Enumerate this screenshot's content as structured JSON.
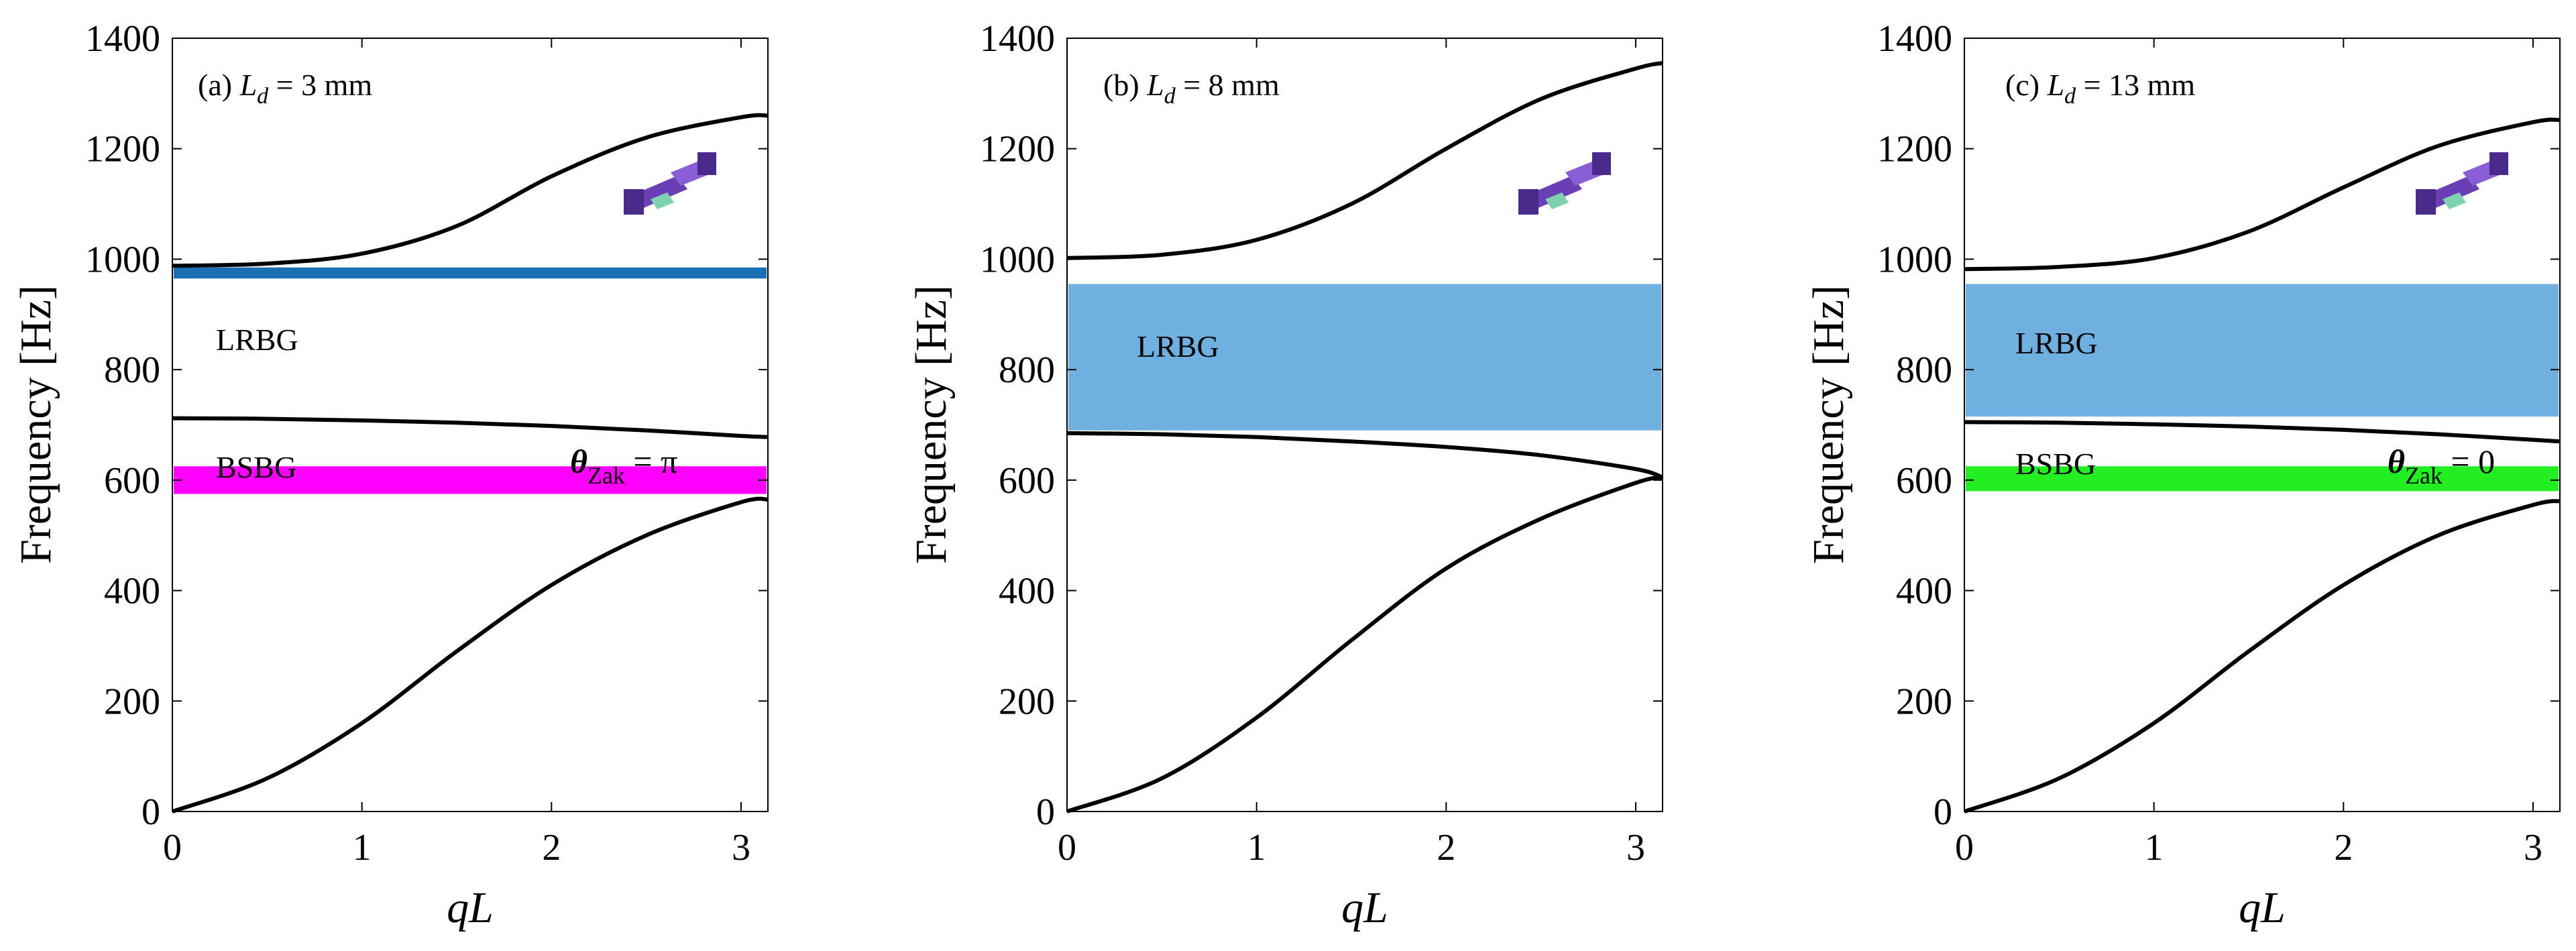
{
  "figure": {
    "panels": [
      {
        "id": "a",
        "label_prefix": "(a)",
        "label_var": "L",
        "label_sub": "d",
        "label_rest": " = 3 mm",
        "band_labels": {
          "lrbg": "LRBG",
          "bsbg": "BSBG"
        },
        "zak": {
          "symbol": "θ",
          "sub": "Zak",
          "rest": " = π"
        }
      },
      {
        "id": "b",
        "label_prefix": "(b)",
        "label_var": "L",
        "label_sub": "d",
        "label_rest": " = 8 mm",
        "band_labels": {
          "lrbg": "LRBG"
        }
      },
      {
        "id": "c",
        "label_prefix": "(c)",
        "label_var": "L",
        "label_sub": "d",
        "label_rest": " = 13 mm",
        "band_labels": {
          "lrbg": "LRBG",
          "bsbg": "BSBG"
        },
        "zak": {
          "symbol": "θ",
          "sub": "Zak",
          "rest": " = 0"
        }
      }
    ]
  },
  "chart_data": [
    {
      "type": "line",
      "title": "(a) Ld = 3 mm",
      "xlabel": "qL",
      "ylabel": "Frequency [Hz]",
      "xlim": [
        0,
        3.1416
      ],
      "ylim": [
        0,
        1400
      ],
      "xticks": [
        0,
        1,
        2,
        3
      ],
      "yticks": [
        0,
        200,
        400,
        600,
        800,
        1000,
        1200,
        1400
      ],
      "x": [
        0,
        0.5,
        1.0,
        1.5,
        2.0,
        2.5,
        3.0,
        3.1416
      ],
      "series": [
        {
          "name": "branch-1",
          "values": [
            0,
            60,
            160,
            290,
            410,
            500,
            560,
            565
          ]
        },
        {
          "name": "branch-2",
          "values": [
            712,
            711,
            708,
            704,
            698,
            690,
            680,
            678
          ]
        },
        {
          "name": "branch-3",
          "values": [
            988,
            992,
            1010,
            1060,
            1150,
            1220,
            1257,
            1260
          ]
        }
      ],
      "bands": [
        {
          "name": "blue-band",
          "from": 965,
          "to": 985,
          "color": "#1b6fb3"
        },
        {
          "name": "magenta-band",
          "from": 575,
          "to": 625,
          "color": "#ff00ff"
        }
      ]
    },
    {
      "type": "line",
      "title": "(b) Ld = 8 mm",
      "xlabel": "qL",
      "ylabel": "Frequency [Hz]",
      "xlim": [
        0,
        3.1416
      ],
      "ylim": [
        0,
        1400
      ],
      "xticks": [
        0,
        1,
        2,
        3
      ],
      "yticks": [
        0,
        200,
        400,
        600,
        800,
        1000,
        1200,
        1400
      ],
      "x": [
        0,
        0.5,
        1.0,
        1.5,
        2.0,
        2.5,
        3.0,
        3.1416
      ],
      "series": [
        {
          "name": "branch-1",
          "values": [
            0,
            60,
            170,
            310,
            440,
            530,
            595,
            605
          ]
        },
        {
          "name": "branch-2",
          "values": [
            685,
            683,
            678,
            670,
            660,
            645,
            620,
            605
          ]
        },
        {
          "name": "branch-3",
          "values": [
            1002,
            1008,
            1035,
            1100,
            1200,
            1290,
            1345,
            1355
          ]
        }
      ],
      "bands": [
        {
          "name": "lrbg-band",
          "from": 690,
          "to": 955,
          "color": "#6fb0e0"
        }
      ]
    },
    {
      "type": "line",
      "title": "(c) Ld = 13 mm",
      "xlabel": "qL",
      "ylabel": "Frequency [Hz]",
      "xlim": [
        0,
        3.1416
      ],
      "ylim": [
        0,
        1400
      ],
      "xticks": [
        0,
        1,
        2,
        3
      ],
      "yticks": [
        0,
        200,
        400,
        600,
        800,
        1000,
        1200,
        1400
      ],
      "x": [
        0,
        0.5,
        1.0,
        1.5,
        2.0,
        2.5,
        3.0,
        3.1416
      ],
      "series": [
        {
          "name": "branch-1",
          "values": [
            0,
            60,
            160,
            290,
            410,
            500,
            555,
            562
          ]
        },
        {
          "name": "branch-2",
          "values": [
            705,
            704,
            701,
            697,
            691,
            683,
            673,
            670
          ]
        },
        {
          "name": "branch-3",
          "values": [
            982,
            986,
            1002,
            1050,
            1130,
            1205,
            1248,
            1252
          ]
        }
      ],
      "bands": [
        {
          "name": "lrbg-band",
          "from": 715,
          "to": 955,
          "color": "#6fb0e0"
        },
        {
          "name": "green-band",
          "from": 580,
          "to": 625,
          "color": "#22ee22"
        }
      ]
    }
  ]
}
